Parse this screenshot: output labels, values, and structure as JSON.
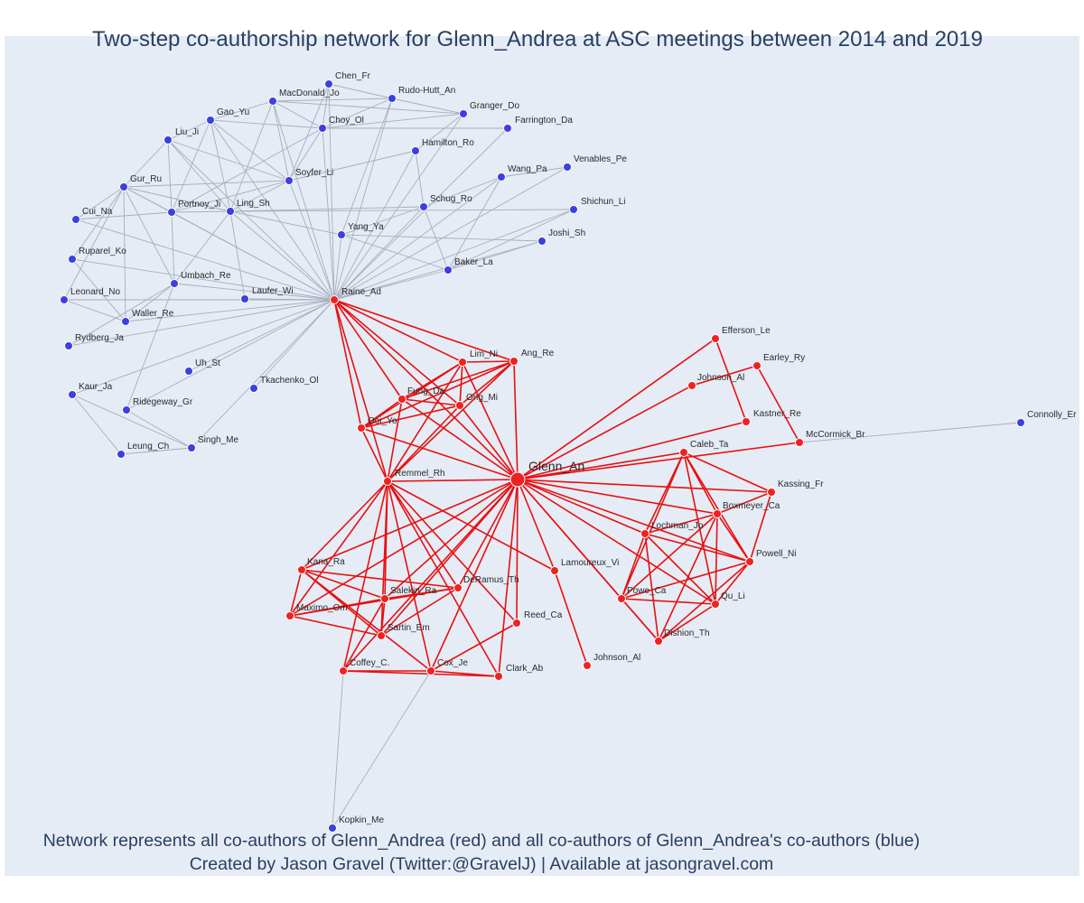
{
  "title": "Two-step co-authorship network for Glenn_Andrea at ASC meetings between 2014 and 2019",
  "caption_line1": "Network represents all co-authors of Glenn_Andrea (red) and all co-authors of Glenn_Andrea's co-authors (blue)",
  "caption_line2": "Created by Jason Gravel (Twitter:@GravelJ) | Available at jasongravel.com",
  "colors": {
    "background": "#e5ecf6",
    "red_node": "#ee2222",
    "blue_node": "#3d3fe0",
    "red_edge": "#e81010",
    "grey_edge": "#a9adbb",
    "text": "#2a3f5f"
  },
  "nodes": [
    {
      "id": "Glenn_An",
      "group": "center"
    },
    {
      "id": "Raine_Ad",
      "group": "red"
    },
    {
      "id": "Remmel_Rh",
      "group": "red"
    },
    {
      "id": "Lim_Ni",
      "group": "red"
    },
    {
      "id": "Ang_Re",
      "group": "red"
    },
    {
      "id": "Fung_Da",
      "group": "red"
    },
    {
      "id": "Ong_Mi",
      "group": "red"
    },
    {
      "id": "Ooi_Yo",
      "group": "red"
    },
    {
      "id": "Efferson_Le",
      "group": "red"
    },
    {
      "id": "Johnson_Al",
      "group": "red"
    },
    {
      "id": "Earley_Ry",
      "group": "red"
    },
    {
      "id": "Kastner_Re",
      "group": "red"
    },
    {
      "id": "McCormick_Br",
      "group": "red"
    },
    {
      "id": "Caleb_Ta",
      "group": "red"
    },
    {
      "id": "Kassing_Fr",
      "group": "red"
    },
    {
      "id": "Boxmeyer_Ca",
      "group": "red"
    },
    {
      "id": "Lochman_Jo",
      "group": "red"
    },
    {
      "id": "Powell_Ni",
      "group": "red"
    },
    {
      "id": "Powe_Ca",
      "group": "red"
    },
    {
      "id": "Qu_Li",
      "group": "red"
    },
    {
      "id": "Dishion_Th",
      "group": "red"
    },
    {
      "id": "Lamoureux_Vi",
      "group": "red"
    },
    {
      "id": "Kana_Ra",
      "group": "red"
    },
    {
      "id": "DeRamus_Th",
      "group": "red"
    },
    {
      "id": "Salekin_Ra",
      "group": "red"
    },
    {
      "id": "Maximo_Om",
      "group": "red"
    },
    {
      "id": "Sartin_Em",
      "group": "red"
    },
    {
      "id": "Reed_Ca",
      "group": "red"
    },
    {
      "id": "Coffey_C.",
      "group": "red"
    },
    {
      "id": "Cox_Je",
      "group": "red"
    },
    {
      "id": "Clark_Ab",
      "group": "red"
    },
    {
      "id": "Johnson_Al ",
      "group": "red"
    },
    {
      "id": "Chen_Fr",
      "group": "blue"
    },
    {
      "id": "MacDonald_Jo",
      "group": "blue"
    },
    {
      "id": "Rudo-Hutt_An",
      "group": "blue"
    },
    {
      "id": "Gao_Yu",
      "group": "blue"
    },
    {
      "id": "Granger_Do",
      "group": "blue"
    },
    {
      "id": "Choy_Ol",
      "group": "blue"
    },
    {
      "id": "Farrington_Da",
      "group": "blue"
    },
    {
      "id": "Liu_Ji",
      "group": "blue"
    },
    {
      "id": "Hamilton_Ro",
      "group": "blue"
    },
    {
      "id": "Venables_Pe",
      "group": "blue"
    },
    {
      "id": "Wang_Pa",
      "group": "blue"
    },
    {
      "id": "Soyfer_Li",
      "group": "blue"
    },
    {
      "id": "Gur_Ru",
      "group": "blue"
    },
    {
      "id": "Shichun_Li",
      "group": "blue"
    },
    {
      "id": "Schug_Ro",
      "group": "blue"
    },
    {
      "id": "Portnoy_Ji",
      "group": "blue"
    },
    {
      "id": "Ling_Sh",
      "group": "blue"
    },
    {
      "id": "Cui_Na",
      "group": "blue"
    },
    {
      "id": "Joshi_Sh",
      "group": "blue"
    },
    {
      "id": "Yang_Ya",
      "group": "blue"
    },
    {
      "id": "Ruparel_Ko",
      "group": "blue"
    },
    {
      "id": "Baker_La",
      "group": "blue"
    },
    {
      "id": "Umbach_Re",
      "group": "blue"
    },
    {
      "id": "Leonard_No",
      "group": "blue"
    },
    {
      "id": "Laufer_Wi",
      "group": "blue"
    },
    {
      "id": "Waller_Re",
      "group": "blue"
    },
    {
      "id": "Rydberg_Ja",
      "group": "blue"
    },
    {
      "id": "Uh_St",
      "group": "blue"
    },
    {
      "id": "Tkachenko_Ol",
      "group": "blue"
    },
    {
      "id": "Kaur_Ja",
      "group": "blue"
    },
    {
      "id": "Ridegeway_Gr",
      "group": "blue"
    },
    {
      "id": "Singh_Me",
      "group": "blue"
    },
    {
      "id": "Leung_Ch",
      "group": "blue"
    },
    {
      "id": "Connolly_Er",
      "group": "blue"
    },
    {
      "id": "Kopkin_Me",
      "group": "blue"
    }
  ],
  "edges": [
    [
      "Glenn_An",
      "Raine_Ad"
    ],
    [
      "Glenn_An",
      "Remmel_Rh"
    ],
    [
      "Glenn_An",
      "Lim_Ni"
    ],
    [
      "Glenn_An",
      "Ang_Re"
    ],
    [
      "Glenn_An",
      "Fung_Da"
    ],
    [
      "Glenn_An",
      "Ong_Mi"
    ],
    [
      "Glenn_An",
      "Ooi_Yo"
    ],
    [
      "Glenn_An",
      "Efferson_Le"
    ],
    [
      "Glenn_An",
      "Johnson_Al"
    ],
    [
      "Glenn_An",
      "Kastner_Re"
    ],
    [
      "Glenn_An",
      "McCormick_Br"
    ],
    [
      "Glenn_An",
      "Caleb_Ta"
    ],
    [
      "Glenn_An",
      "Kassing_Fr"
    ],
    [
      "Glenn_An",
      "Boxmeyer_Ca"
    ],
    [
      "Glenn_An",
      "Lochman_Jo"
    ],
    [
      "Glenn_An",
      "Powell_Ni"
    ],
    [
      "Glenn_An",
      "Powe_Ca"
    ],
    [
      "Glenn_An",
      "Qu_Li"
    ],
    [
      "Glenn_An",
      "Dishion_Th"
    ],
    [
      "Glenn_An",
      "Lamoureux_Vi"
    ],
    [
      "Glenn_An",
      "Kana_Ra"
    ],
    [
      "Glenn_An",
      "DeRamus_Th"
    ],
    [
      "Glenn_An",
      "Salekin_Ra"
    ],
    [
      "Glenn_An",
      "Maximo_Om"
    ],
    [
      "Glenn_An",
      "Sartin_Em"
    ],
    [
      "Glenn_An",
      "Reed_Ca"
    ],
    [
      "Glenn_An",
      "Coffey_C."
    ],
    [
      "Glenn_An",
      "Cox_Je"
    ],
    [
      "Glenn_An",
      "Clark_Ab"
    ],
    [
      "Raine_Ad",
      "Lim_Ni"
    ],
    [
      "Raine_Ad",
      "Ang_Re"
    ],
    [
      "Raine_Ad",
      "Fung_Da"
    ],
    [
      "Raine_Ad",
      "Ong_Mi"
    ],
    [
      "Raine_Ad",
      "Ooi_Yo"
    ],
    [
      "Raine_Ad",
      "Remmel_Rh"
    ],
    [
      "Lim_Ni",
      "Ang_Re"
    ],
    [
      "Lim_Ni",
      "Fung_Da"
    ],
    [
      "Lim_Ni",
      "Ong_Mi"
    ],
    [
      "Lim_Ni",
      "Ooi_Yo"
    ],
    [
      "Lim_Ni",
      "Remmel_Rh"
    ],
    [
      "Ang_Re",
      "Fung_Da"
    ],
    [
      "Ang_Re",
      "Ong_Mi"
    ],
    [
      "Ang_Re",
      "Ooi_Yo"
    ],
    [
      "Ang_Re",
      "Remmel_Rh"
    ],
    [
      "Fung_Da",
      "Ong_Mi"
    ],
    [
      "Fung_Da",
      "Ooi_Yo"
    ],
    [
      "Fung_Da",
      "Remmel_Rh"
    ],
    [
      "Ong_Mi",
      "Ooi_Yo"
    ],
    [
      "Ong_Mi",
      "Remmel_Rh"
    ],
    [
      "Ooi_Yo",
      "Remmel_Rh"
    ],
    [
      "Remmel_Rh",
      "Kana_Ra"
    ],
    [
      "Remmel_Rh",
      "DeRamus_Th"
    ],
    [
      "Remmel_Rh",
      "Salekin_Ra"
    ],
    [
      "Remmel_Rh",
      "Maximo_Om"
    ],
    [
      "Remmel_Rh",
      "Sartin_Em"
    ],
    [
      "Remmel_Rh",
      "Reed_Ca"
    ],
    [
      "Remmel_Rh",
      "Coffey_C."
    ],
    [
      "Remmel_Rh",
      "Cox_Je"
    ],
    [
      "Remmel_Rh",
      "Clark_Ab"
    ],
    [
      "Remmel_Rh",
      "Lamoureux_Vi"
    ],
    [
      "Kana_Ra",
      "Salekin_Ra"
    ],
    [
      "Kana_Ra",
      "DeRamus_Th"
    ],
    [
      "Kana_Ra",
      "Maximo_Om"
    ],
    [
      "Kana_Ra",
      "Sartin_Em"
    ],
    [
      "Salekin_Ra",
      "Maximo_Om"
    ],
    [
      "Salekin_Ra",
      "DeRamus_Th"
    ],
    [
      "Salekin_Ra",
      "Sartin_Em"
    ],
    [
      "Maximo_Om",
      "DeRamus_Th"
    ],
    [
      "Maximo_Om",
      "Sartin_Em"
    ],
    [
      "DeRamus_Th",
      "Sartin_Em"
    ],
    [
      "Coffey_C.",
      "Cox_Je"
    ],
    [
      "Coffey_C.",
      "Clark_Ab"
    ],
    [
      "Cox_Je",
      "Clark_Ab"
    ],
    [
      "Cox_Je",
      "Reed_Ca"
    ],
    [
      "Kana_Ra",
      "Cox_Je"
    ],
    [
      "Salekin_Ra",
      "Coffey_C."
    ],
    [
      "Lamoureux_Vi",
      "Johnson_Al "
    ],
    [
      "Earley_Ry",
      "Johnson_Al"
    ],
    [
      "Earley_Ry",
      "McCormick_Br"
    ],
    [
      "Efferson_Le",
      "Kastner_Re"
    ],
    [
      "Caleb_Ta",
      "Kassing_Fr"
    ],
    [
      "Caleb_Ta",
      "Boxmeyer_Ca"
    ],
    [
      "Caleb_Ta",
      "Powell_Ni"
    ],
    [
      "Caleb_Ta",
      "Lochman_Jo"
    ],
    [
      "Caleb_Ta",
      "Powe_Ca"
    ],
    [
      "Caleb_Ta",
      "Qu_Li"
    ],
    [
      "Boxmeyer_Ca",
      "Lochman_Jo"
    ],
    [
      "Boxmeyer_Ca",
      "Powell_Ni"
    ],
    [
      "Boxmeyer_Ca",
      "Powe_Ca"
    ],
    [
      "Boxmeyer_Ca",
      "Qu_Li"
    ],
    [
      "Boxmeyer_Ca",
      "Dishion_Th"
    ],
    [
      "Boxmeyer_Ca",
      "Kassing_Fr"
    ],
    [
      "Lochman_Jo",
      "Powell_Ni"
    ],
    [
      "Lochman_Jo",
      "Powe_Ca"
    ],
    [
      "Lochman_Jo",
      "Qu_Li"
    ],
    [
      "Lochman_Jo",
      "Dishion_Th"
    ],
    [
      "Powell_Ni",
      "Powe_Ca"
    ],
    [
      "Powell_Ni",
      "Qu_Li"
    ],
    [
      "Powell_Ni",
      "Dishion_Th"
    ],
    [
      "Powell_Ni",
      "Kassing_Fr"
    ],
    [
      "Powe_Ca",
      "Qu_Li"
    ],
    [
      "Powe_Ca",
      "Dishion_Th"
    ],
    [
      "Qu_Li",
      "Dishion_Th"
    ],
    [
      "Raine_Ad",
      "Chen_Fr"
    ],
    [
      "Raine_Ad",
      "MacDonald_Jo"
    ],
    [
      "Raine_Ad",
      "Rudo-Hutt_An"
    ],
    [
      "Raine_Ad",
      "Gao_Yu"
    ],
    [
      "Raine_Ad",
      "Granger_Do"
    ],
    [
      "Raine_Ad",
      "Choy_Ol"
    ],
    [
      "Raine_Ad",
      "Farrington_Da"
    ],
    [
      "Raine_Ad",
      "Liu_Ji"
    ],
    [
      "Raine_Ad",
      "Hamilton_Ro"
    ],
    [
      "Raine_Ad",
      "Venables_Pe"
    ],
    [
      "Raine_Ad",
      "Wang_Pa"
    ],
    [
      "Raine_Ad",
      "Soyfer_Li"
    ],
    [
      "Raine_Ad",
      "Gur_Ru"
    ],
    [
      "Raine_Ad",
      "Shichun_Li"
    ],
    [
      "Raine_Ad",
      "Schug_Ro"
    ],
    [
      "Raine_Ad",
      "Portnoy_Ji"
    ],
    [
      "Raine_Ad",
      "Ling_Sh"
    ],
    [
      "Raine_Ad",
      "Cui_Na"
    ],
    [
      "Raine_Ad",
      "Joshi_Sh"
    ],
    [
      "Raine_Ad",
      "Yang_Ya"
    ],
    [
      "Raine_Ad",
      "Ruparel_Ko"
    ],
    [
      "Raine_Ad",
      "Baker_La"
    ],
    [
      "Raine_Ad",
      "Umbach_Re"
    ],
    [
      "Raine_Ad",
      "Leonard_No"
    ],
    [
      "Raine_Ad",
      "Laufer_Wi"
    ],
    [
      "Raine_Ad",
      "Waller_Re"
    ],
    [
      "Raine_Ad",
      "Rydberg_Ja"
    ],
    [
      "Raine_Ad",
      "Uh_St"
    ],
    [
      "Raine_Ad",
      "Tkachenko_Ol"
    ],
    [
      "Raine_Ad",
      "Kaur_Ja"
    ],
    [
      "Raine_Ad",
      "Ridegeway_Gr"
    ],
    [
      "Raine_Ad",
      "Singh_Me"
    ],
    [
      "MacDonald_Jo",
      "Rudo-Hutt_An"
    ],
    [
      "MacDonald_Jo",
      "Granger_Do"
    ],
    [
      "MacDonald_Jo",
      "Choy_Ol"
    ],
    [
      "MacDonald_Jo",
      "Soyfer_Li"
    ],
    [
      "MacDonald_Jo",
      "Gao_Yu"
    ],
    [
      "MacDonald_Jo",
      "Ling_Sh"
    ],
    [
      "Chen_Fr",
      "Choy_Ol"
    ],
    [
      "Chen_Fr",
      "Rudo-Hutt_An"
    ],
    [
      "Chen_Fr",
      "Soyfer_Li"
    ],
    [
      "Rudo-Hutt_An",
      "Granger_Do"
    ],
    [
      "Rudo-Hutt_An",
      "Choy_Ol"
    ],
    [
      "Rudo-Hutt_An",
      "Yang_Ya"
    ],
    [
      "Granger_Do",
      "Choy_Ol"
    ],
    [
      "Granger_Do",
      "Hamilton_Ro"
    ],
    [
      "Choy_Ol",
      "Farrington_Da"
    ],
    [
      "Choy_Ol",
      "Soyfer_Li"
    ],
    [
      "Choy_Ol",
      "Gao_Yu"
    ],
    [
      "Choy_Ol",
      "Portnoy_Ji"
    ],
    [
      "Gao_Yu",
      "Liu_Ji"
    ],
    [
      "Gao_Yu",
      "Soyfer_Li"
    ],
    [
      "Gao_Yu",
      "Portnoy_Ji"
    ],
    [
      "Gao_Yu",
      "Ling_Sh"
    ],
    [
      "Liu_Ji",
      "Soyfer_Li"
    ],
    [
      "Liu_Ji",
      "Portnoy_Ji"
    ],
    [
      "Liu_Ji",
      "Gur_Ru"
    ],
    [
      "Liu_Ji",
      "Ling_Sh"
    ],
    [
      "Soyfer_Li",
      "Portnoy_Ji"
    ],
    [
      "Soyfer_Li",
      "Ling_Sh"
    ],
    [
      "Soyfer_Li",
      "Gur_Ru"
    ],
    [
      "Soyfer_Li",
      "Hamilton_Ro"
    ],
    [
      "Gur_Ru",
      "Portnoy_Ji"
    ],
    [
      "Gur_Ru",
      "Ling_Sh"
    ],
    [
      "Gur_Ru",
      "Cui_Na"
    ],
    [
      "Gur_Ru",
      "Ruparel_Ko"
    ],
    [
      "Gur_Ru",
      "Umbach_Re"
    ],
    [
      "Gur_Ru",
      "Waller_Re"
    ],
    [
      "Gur_Ru",
      "Leonard_No"
    ],
    [
      "Portnoy_Ji",
      "Ling_Sh"
    ],
    [
      "Portnoy_Ji",
      "Umbach_Re"
    ],
    [
      "Portnoy_Ji",
      "Cui_Na"
    ],
    [
      "Ling_Sh",
      "Schug_Ro"
    ],
    [
      "Ling_Sh",
      "Yang_Ya"
    ],
    [
      "Ling_Sh",
      "Umbach_Re"
    ],
    [
      "Ling_Sh",
      "Laufer_Wi"
    ],
    [
      "Ling_Sh",
      "Shichun_Li"
    ],
    [
      "Wang_Pa",
      "Venables_Pe"
    ],
    [
      "Wang_Pa",
      "Schug_Ro"
    ],
    [
      "Wang_Pa",
      "Baker_La"
    ],
    [
      "Schug_Ro",
      "Yang_Ya"
    ],
    [
      "Schug_Ro",
      "Baker_La"
    ],
    [
      "Schug_Ro",
      "Hamilton_Ro"
    ],
    [
      "Yang_Ya",
      "Joshi_Sh"
    ],
    [
      "Yang_Ya",
      "Baker_La"
    ],
    [
      "Baker_La",
      "Joshi_Sh"
    ],
    [
      "Baker_La",
      "Shichun_Li"
    ],
    [
      "Umbach_Re",
      "Ridegeway_Gr"
    ],
    [
      "Umbach_Re",
      "Rydberg_Ja"
    ],
    [
      "Umbach_Re",
      "Waller_Re"
    ],
    [
      "Leonard_No",
      "Waller_Re"
    ],
    [
      "Ruparel_Ko",
      "Waller_Re"
    ],
    [
      "Kaur_Ja",
      "Singh_Me"
    ],
    [
      "Kaur_Ja",
      "Leung_Ch"
    ],
    [
      "Singh_Me",
      "Leung_Ch"
    ],
    [
      "Ridegeway_Gr",
      "Singh_Me"
    ],
    [
      "McCormick_Br",
      "Connolly_Er"
    ],
    [
      "Coffey_C.",
      "Kopkin_Me"
    ],
    [
      "Cox_Je",
      "Kopkin_Me"
    ]
  ]
}
